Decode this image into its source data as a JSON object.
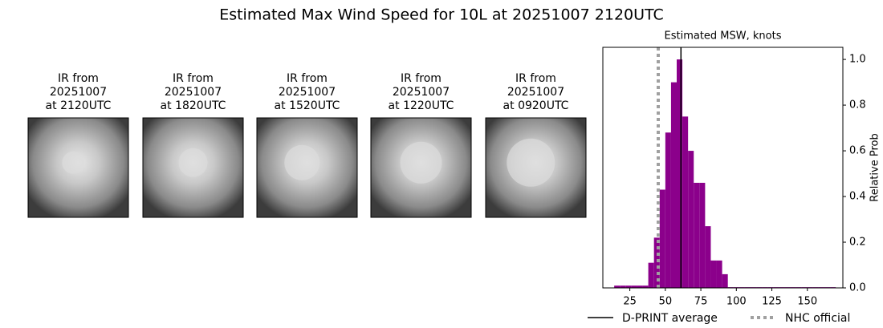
{
  "title": "Estimated Max Wind Speed for 10L at 20251007 2120UTC",
  "images": [
    {
      "caption": [
        "IR from",
        "20251007",
        "at 2120UTC"
      ]
    },
    {
      "caption": [
        "IR from",
        "20251007",
        "at 1820UTC"
      ]
    },
    {
      "caption": [
        "IR from",
        "20251007",
        "at 1520UTC"
      ]
    },
    {
      "caption": [
        "IR from",
        "20251007",
        "at 1220UTC"
      ]
    },
    {
      "caption": [
        "IR from",
        "20251007",
        "at 0920UTC"
      ]
    }
  ],
  "chart_data": {
    "type": "histogram",
    "title": "Estimated MSW, knots",
    "y_label": "Relative Prob",
    "y_axis_side": "right",
    "color": "#8b008b",
    "bins": [
      14,
      18,
      22,
      26,
      30,
      34,
      38,
      42,
      46,
      50,
      54,
      58,
      62,
      66,
      70,
      74,
      78,
      82,
      86,
      90,
      94,
      98,
      102,
      106,
      110,
      114,
      118,
      122,
      126,
      130,
      134,
      138,
      142,
      146,
      150,
      154,
      158,
      162,
      166,
      170
    ],
    "values": [
      0.01,
      0.01,
      0.01,
      0.01,
      0.01,
      0.01,
      0.11,
      0.22,
      0.43,
      0.68,
      0.9,
      1.0,
      0.75,
      0.6,
      0.46,
      0.46,
      0.27,
      0.12,
      0.12,
      0.06,
      0.003,
      0.003,
      0.003,
      0.003,
      0.003,
      0.003,
      0.003,
      0.003,
      0.003,
      0.003,
      0.003,
      0.003,
      0.003,
      0.003,
      0.003,
      0.003,
      0.003,
      0.003,
      0.003
    ],
    "xlim": [
      6,
      175
    ],
    "ylim": [
      0,
      1.053
    ],
    "xticks": [
      25,
      50,
      75,
      100,
      125,
      150
    ],
    "yticks": [
      {
        "value": 0,
        "label": "0.0"
      },
      0.2,
      0.4,
      0.6,
      0.8,
      {
        "value": 1,
        "label": "1.0"
      }
    ],
    "lines": [
      {
        "name": "D-PRINT average",
        "x": 61,
        "color": "#000000",
        "style": "solid"
      },
      {
        "name": "NHC official",
        "x": 45,
        "color": "#a0a0a0",
        "style": "dotted"
      }
    ],
    "legend": "bottom"
  }
}
